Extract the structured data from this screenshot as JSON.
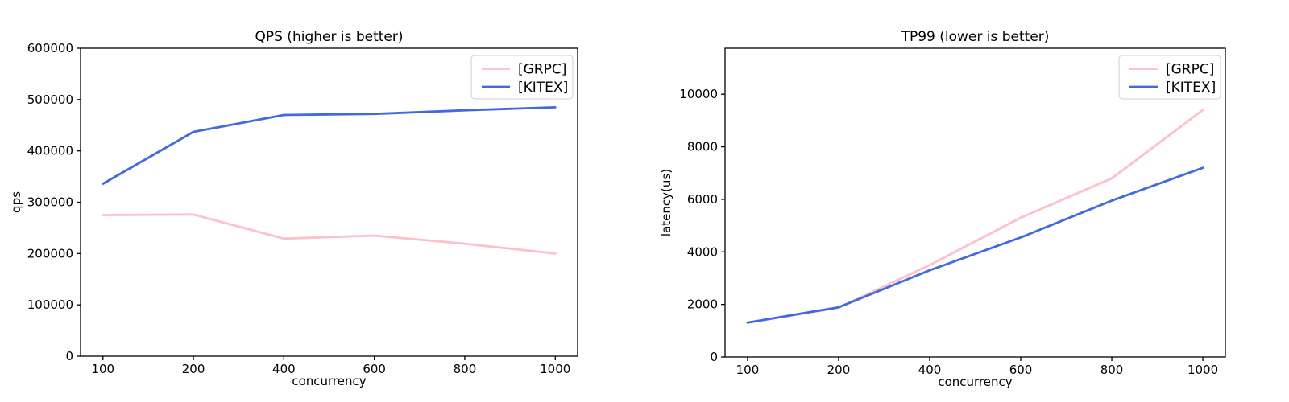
{
  "figure": {
    "background": "#ffffff",
    "series_colors": {
      "grpc": "#ffc0cb",
      "kitex": "#4169e1"
    }
  },
  "chart_data": [
    {
      "type": "line",
      "title": "QPS (higher is better)",
      "xlabel": "concurrency",
      "ylabel": "qps",
      "categories": [
        "100",
        "200",
        "400",
        "600",
        "800",
        "1000"
      ],
      "series": [
        {
          "name": "[GRPC]",
          "color": "#ffc0cb",
          "values": [
            275000,
            276000,
            229000,
            235000,
            219000,
            200000
          ]
        },
        {
          "name": "[KITEX]",
          "color": "#4169e1",
          "values": [
            336000,
            437000,
            470000,
            472000,
            479000,
            485000
          ]
        }
      ],
      "ylim": [
        0,
        600000
      ],
      "yticks": [
        0,
        100000,
        200000,
        300000,
        400000,
        500000,
        600000
      ],
      "grid": false,
      "legend_position": "upper right"
    },
    {
      "type": "line",
      "title": "TP99 (lower is better)",
      "xlabel": "concurrency",
      "ylabel": "latency(us)",
      "categories": [
        "100",
        "200",
        "400",
        "600",
        "800",
        "1000"
      ],
      "series": [
        {
          "name": "[GRPC]",
          "color": "#ffc0cb",
          "values": [
            1300,
            1880,
            3500,
            5300,
            6800,
            9400
          ]
        },
        {
          "name": "[KITEX]",
          "color": "#4169e1",
          "values": [
            1310,
            1890,
            3300,
            4550,
            5950,
            7200
          ]
        }
      ],
      "ylim": [
        0,
        11750
      ],
      "yticks": [
        0,
        2000,
        4000,
        6000,
        8000,
        10000
      ],
      "grid": false,
      "legend_position": "upper right"
    }
  ]
}
